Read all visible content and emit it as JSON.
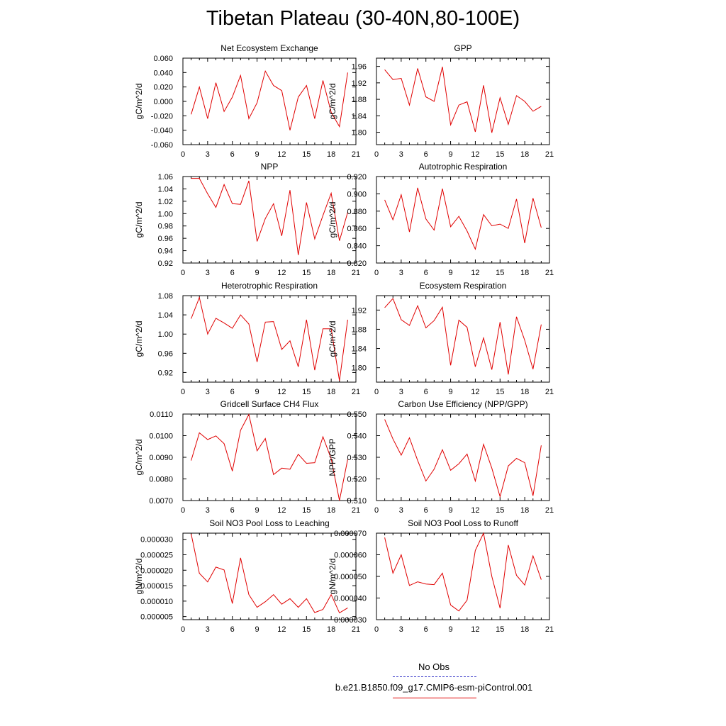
{
  "title": "Tibetan Plateau (30-40N,80-100E)",
  "legend": {
    "obs_label": "No Obs",
    "run_label": "b.e21.B1850.f09_g17.CMIP6-esm-piControl.001",
    "obs_color": "#4444cc",
    "run_color": "#e00000"
  },
  "chart_data": [
    {
      "type": "line",
      "title": "Net Ecosystem Exchange",
      "ylabel": "gC/m^2/d",
      "xlim": [
        0,
        21
      ],
      "xticks": [
        "0",
        "3",
        "6",
        "9",
        "12",
        "15",
        "18",
        "21"
      ],
      "ylim": [
        -0.06,
        0.06
      ],
      "yticks": [
        "-0.060",
        "-0.040",
        "-0.020",
        "0.000",
        "0.020",
        "0.040",
        "0.060"
      ],
      "ytick_values": [
        -0.06,
        -0.04,
        -0.02,
        0.0,
        0.02,
        0.04,
        0.06
      ],
      "x": [
        1,
        2,
        3,
        4,
        5,
        6,
        7,
        8,
        9,
        10,
        11,
        12,
        13,
        14,
        15,
        16,
        17,
        18,
        19,
        20
      ],
      "values": [
        -0.018,
        0.02,
        -0.024,
        0.026,
        -0.014,
        0.006,
        0.036,
        -0.024,
        -0.002,
        0.042,
        0.022,
        0.015,
        -0.04,
        0.006,
        0.022,
        -0.024,
        0.029,
        -0.015,
        -0.035,
        0.04
      ]
    },
    {
      "type": "line",
      "title": "GPP",
      "ylabel": "gC/m^2/d",
      "xlim": [
        0,
        21
      ],
      "xticks": [
        "0",
        "3",
        "6",
        "9",
        "12",
        "15",
        "18",
        "21"
      ],
      "ylim": [
        1.77,
        1.98
      ],
      "yticks": [
        "1.80",
        "1.84",
        "1.88",
        "1.92",
        "1.96"
      ],
      "ytick_values": [
        1.8,
        1.84,
        1.88,
        1.92,
        1.96
      ],
      "x": [
        1,
        2,
        3,
        4,
        5,
        6,
        7,
        8,
        9,
        10,
        11,
        12,
        13,
        14,
        15,
        16,
        17,
        18,
        19,
        20
      ],
      "values": [
        1.952,
        1.928,
        1.931,
        1.866,
        1.955,
        1.886,
        1.875,
        1.959,
        1.818,
        1.866,
        1.874,
        1.801,
        1.914,
        1.799,
        1.884,
        1.819,
        1.889,
        1.875,
        1.851,
        1.863
      ]
    },
    {
      "type": "line",
      "title": "NPP",
      "ylabel": "gC/m^2/d",
      "xlim": [
        0,
        21
      ],
      "xticks": [
        "0",
        "3",
        "6",
        "9",
        "12",
        "15",
        "18",
        "21"
      ],
      "ylim": [
        0.92,
        1.06
      ],
      "yticks": [
        "0.92",
        "0.94",
        "0.96",
        "0.98",
        "1.00",
        "1.02",
        "1.04",
        "1.06"
      ],
      "ytick_values": [
        0.92,
        0.94,
        0.96,
        0.98,
        1.0,
        1.02,
        1.04,
        1.06
      ],
      "x": [
        1,
        2,
        3,
        4,
        5,
        6,
        7,
        8,
        9,
        10,
        11,
        12,
        13,
        14,
        15,
        16,
        17,
        18,
        19,
        20
      ],
      "values": [
        1.057,
        1.057,
        1.032,
        1.01,
        1.047,
        1.016,
        1.015,
        1.053,
        0.955,
        0.992,
        1.016,
        0.964,
        1.038,
        0.933,
        1.018,
        0.959,
        0.997,
        1.033,
        0.956,
        1.002
      ]
    },
    {
      "type": "line",
      "title": "Autotrophic Respiration",
      "ylabel": "gC/m^2/d",
      "xlim": [
        0,
        21
      ],
      "xticks": [
        "0",
        "3",
        "6",
        "9",
        "12",
        "15",
        "18",
        "21"
      ],
      "ylim": [
        0.82,
        0.92
      ],
      "yticks": [
        "0.820",
        "0.840",
        "0.860",
        "0.880",
        "0.900",
        "0.920"
      ],
      "ytick_values": [
        0.82,
        0.84,
        0.86,
        0.88,
        0.9,
        0.92
      ],
      "x": [
        1,
        2,
        3,
        4,
        5,
        6,
        7,
        8,
        9,
        10,
        11,
        12,
        13,
        14,
        15,
        16,
        17,
        18,
        19,
        20
      ],
      "values": [
        0.893,
        0.87,
        0.899,
        0.856,
        0.907,
        0.871,
        0.858,
        0.906,
        0.862,
        0.874,
        0.857,
        0.836,
        0.876,
        0.863,
        0.865,
        0.86,
        0.894,
        0.843,
        0.895,
        0.861
      ]
    },
    {
      "type": "line",
      "title": "Heterotrophic Respiration",
      "ylabel": "gC/m^2/d",
      "xlim": [
        0,
        21
      ],
      "xticks": [
        "0",
        "3",
        "6",
        "9",
        "12",
        "15",
        "18",
        "21"
      ],
      "ylim": [
        0.9,
        1.08
      ],
      "yticks": [
        "0.92",
        "0.96",
        "1.00",
        "1.04",
        "1.08"
      ],
      "ytick_values": [
        0.92,
        0.96,
        1.0,
        1.04,
        1.08
      ],
      "x": [
        1,
        2,
        3,
        4,
        5,
        6,
        7,
        8,
        9,
        10,
        11,
        12,
        13,
        14,
        15,
        16,
        17,
        18,
        19,
        20
      ],
      "values": [
        1.032,
        1.076,
        1.0,
        1.033,
        1.023,
        1.012,
        1.04,
        1.021,
        0.942,
        1.025,
        1.026,
        0.968,
        0.986,
        0.932,
        1.03,
        0.925,
        1.011,
        1.011,
        0.903,
        1.03
      ]
    },
    {
      "type": "line",
      "title": "Ecosystem Respiration",
      "ylabel": "gC/m^2/d",
      "xlim": [
        0,
        21
      ],
      "xticks": [
        "0",
        "3",
        "6",
        "9",
        "12",
        "15",
        "18",
        "21"
      ],
      "ylim": [
        1.77,
        1.95
      ],
      "yticks": [
        "1.80",
        "1.84",
        "1.88",
        "1.92"
      ],
      "ytick_values": [
        1.8,
        1.84,
        1.88,
        1.92
      ],
      "x": [
        1,
        2,
        3,
        4,
        5,
        6,
        7,
        8,
        9,
        10,
        11,
        12,
        13,
        14,
        15,
        16,
        17,
        18,
        19,
        20
      ],
      "values": [
        1.925,
        1.944,
        1.9,
        1.888,
        1.929,
        1.883,
        1.898,
        1.926,
        1.805,
        1.899,
        1.884,
        1.802,
        1.862,
        1.796,
        1.895,
        1.786,
        1.906,
        1.857,
        1.797,
        1.89
      ]
    },
    {
      "type": "line",
      "title": "Gridcell Surface CH4 Flux",
      "ylabel": "gC/m^2/d",
      "xlim": [
        0,
        21
      ],
      "xticks": [
        "0",
        "3",
        "6",
        "9",
        "12",
        "15",
        "18",
        "21"
      ],
      "ylim": [
        0.007,
        0.011
      ],
      "yticks": [
        "0.0070",
        "0.0080",
        "0.0090",
        "0.0100",
        "0.0110"
      ],
      "ytick_values": [
        0.007,
        0.008,
        0.009,
        0.01,
        0.011
      ],
      "x": [
        1,
        2,
        3,
        4,
        5,
        6,
        7,
        8,
        9,
        10,
        11,
        12,
        13,
        14,
        15,
        16,
        17,
        18,
        19,
        20
      ],
      "values": [
        0.00885,
        0.01013,
        0.00982,
        0.00999,
        0.00963,
        0.00836,
        0.01025,
        0.01098,
        0.0093,
        0.00987,
        0.0082,
        0.0085,
        0.00845,
        0.00914,
        0.00872,
        0.00875,
        0.00995,
        0.00893,
        0.007,
        0.0089
      ]
    },
    {
      "type": "line",
      "title": "Carbon Use Efficiency (NPP/GPP)",
      "ylabel": "NPP/GPP",
      "xlim": [
        0,
        21
      ],
      "xticks": [
        "0",
        "3",
        "6",
        "9",
        "12",
        "15",
        "18",
        "21"
      ],
      "ylim": [
        0.51,
        0.55
      ],
      "yticks": [
        "0.510",
        "0.520",
        "0.530",
        "0.540",
        "0.550"
      ],
      "ytick_values": [
        0.51,
        0.52,
        0.53,
        0.54,
        0.55
      ],
      "x": [
        1,
        2,
        3,
        4,
        5,
        6,
        7,
        8,
        9,
        10,
        11,
        12,
        13,
        14,
        15,
        16,
        17,
        18,
        19,
        20
      ],
      "values": [
        0.5475,
        0.5385,
        0.531,
        0.539,
        0.5285,
        0.519,
        0.5245,
        0.5335,
        0.524,
        0.527,
        0.5315,
        0.519,
        0.536,
        0.525,
        0.5118,
        0.526,
        0.5295,
        0.5275,
        0.5122,
        0.5355
      ]
    },
    {
      "type": "line",
      "title": "Soil NO3 Pool Loss to Leaching",
      "ylabel": "gN/m^2/d",
      "xlim": [
        0,
        21
      ],
      "xticks": [
        "0",
        "3",
        "6",
        "9",
        "12",
        "15",
        "18",
        "21"
      ],
      "ylim": [
        4e-06,
        3.2e-05
      ],
      "yticks": [
        "0.000005",
        "0.000010",
        "0.000015",
        "0.000020",
        "0.000025",
        "0.000030"
      ],
      "ytick_values": [
        5e-06,
        1e-05,
        1.5e-05,
        2e-05,
        2.5e-05,
        3e-05
      ],
      "x": [
        1,
        2,
        3,
        4,
        5,
        6,
        7,
        8,
        9,
        10,
        11,
        12,
        13,
        14,
        15,
        16,
        17,
        18,
        19,
        20
      ],
      "values": [
        3.18e-05,
        1.9e-05,
        1.62e-05,
        2.1e-05,
        2.01e-05,
        9.2e-06,
        2.4e-05,
        1.21e-05,
        8e-06,
        9.8e-06,
        1.21e-05,
        9e-06,
        1.08e-05,
        8e-06,
        1.08e-05,
        6.3e-06,
        7.3e-06,
        1.21e-05,
        6.2e-06,
        7.8e-06
      ]
    },
    {
      "type": "line",
      "title": "Soil NO3 Pool Loss to Runoff",
      "ylabel": "gN/m^2/d",
      "xlim": [
        0,
        21
      ],
      "xticks": [
        "0",
        "3",
        "6",
        "9",
        "12",
        "15",
        "18",
        "21"
      ],
      "ylim": [
        3e-05,
        7e-05
      ],
      "yticks": [
        "0.000030",
        "0.000040",
        "0.000050",
        "0.000060",
        "0.000070"
      ],
      "ytick_values": [
        3e-05,
        4e-05,
        5e-05,
        6e-05,
        7e-05
      ],
      "x": [
        1,
        2,
        3,
        4,
        5,
        6,
        7,
        8,
        9,
        10,
        11,
        12,
        13,
        14,
        15,
        16,
        17,
        18,
        19,
        20
      ],
      "values": [
        6.8e-05,
        5.15e-05,
        6e-05,
        4.58e-05,
        4.75e-05,
        4.65e-05,
        4.62e-05,
        5.15e-05,
        3.68e-05,
        3.4e-05,
        3.9e-05,
        6.2e-05,
        7e-05,
        5e-05,
        3.53e-05,
        6.45e-05,
        5.05e-05,
        4.6e-05,
        5.95e-05,
        4.85e-05
      ]
    }
  ]
}
